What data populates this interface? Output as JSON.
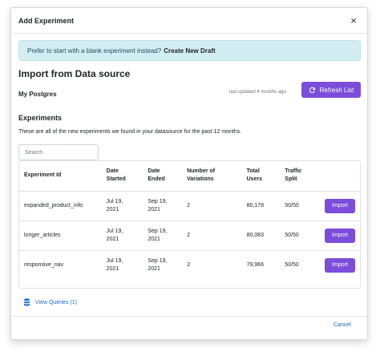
{
  "modal": {
    "title": "Add Experiment",
    "close_glyph": "×"
  },
  "alert": {
    "text": "Prefer to start with a blank experiment instead?",
    "link_label": "Create New Draft"
  },
  "import": {
    "title": "Import from Data source",
    "datasource_name": "My Postgres",
    "last_updated": "last updated 4 months ago",
    "refresh_label": "Refresh List",
    "refresh_icon": "refresh-icon"
  },
  "experiments": {
    "heading": "Experiments",
    "description": "These are all of the new experiments we found in your datasource for the past 12 months.",
    "search_placeholder": "Search",
    "columns": [
      [
        "Experiment Id"
      ],
      [
        "Date",
        "Started"
      ],
      [
        "Date",
        "Ended"
      ],
      [
        "Number of",
        "Variations"
      ],
      [
        "Total",
        "Users"
      ],
      [
        "Traffic",
        "Split"
      ],
      [
        ""
      ]
    ],
    "rows": [
      {
        "id": "expanded_product_info",
        "started": [
          "Jul 19,",
          "2021"
        ],
        "ended": [
          "Sep 19,",
          "2021"
        ],
        "variations": "2",
        "users": "80,178",
        "split": "50/50",
        "action": "Import"
      },
      {
        "id": "longer_articles",
        "started": [
          "Jul 19,",
          "2021"
        ],
        "ended": [
          "Sep 19,",
          "2021"
        ],
        "variations": "2",
        "users": "80,083",
        "split": "50/50",
        "action": "Import"
      },
      {
        "id": "responsive_nav",
        "started": [
          "Jul 19,",
          "2021"
        ],
        "ended": [
          "Sep 19,",
          "2021"
        ],
        "variations": "2",
        "users": "79,966",
        "split": "50/50",
        "action": "Import"
      }
    ]
  },
  "view_queries": {
    "label": "View Queries (1)",
    "icon": "database-icon"
  },
  "footer": {
    "cancel_label": "Cancel"
  },
  "colors": {
    "accent": "#7c4ddb",
    "link": "#1967d2",
    "alert_bg": "#d3eef3"
  }
}
